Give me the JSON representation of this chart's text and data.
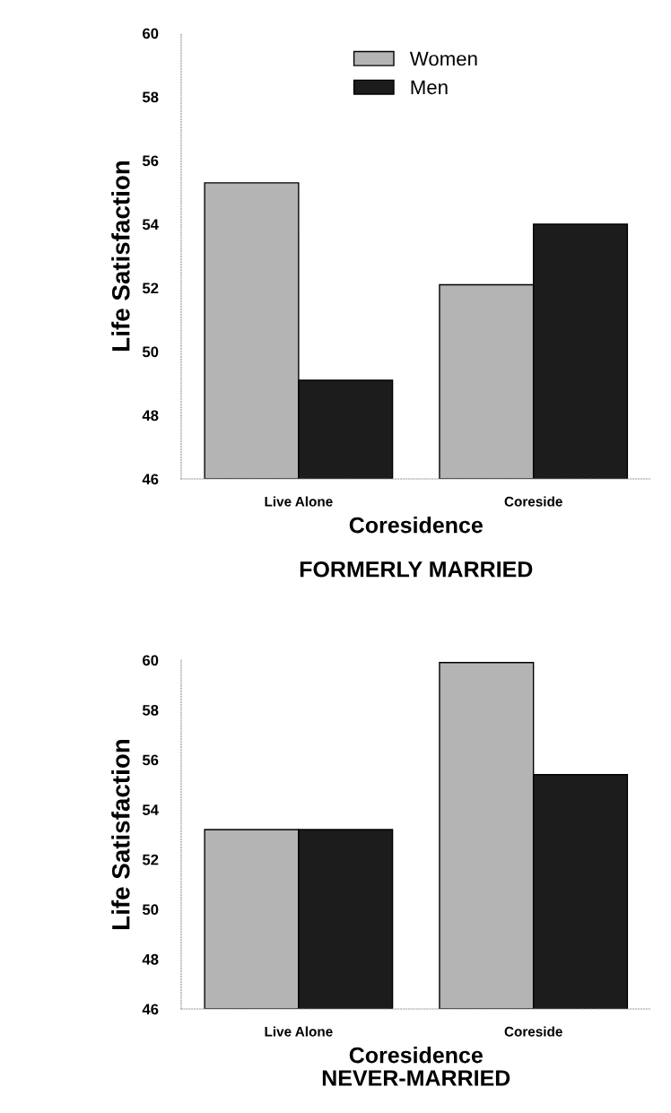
{
  "chart_data": [
    {
      "type": "bar",
      "title": "FORMERLY MARRIED",
      "xlabel": "Coresidence",
      "ylabel": "Life Satisfaction",
      "categories": [
        "Live Alone",
        "Coreside"
      ],
      "series": [
        {
          "name": "Women",
          "color": "#b4b4b4",
          "values": [
            55.3,
            52.1
          ]
        },
        {
          "name": "Men",
          "color": "#1c1c1c",
          "values": [
            49.1,
            54.0
          ]
        }
      ],
      "ylim": [
        46,
        60
      ],
      "yticks": [
        46,
        48,
        50,
        52,
        54,
        56,
        58,
        60
      ],
      "legend": "top",
      "grid": false
    },
    {
      "type": "bar",
      "title": "NEVER-MARRIED",
      "xlabel": "Coresidence",
      "ylabel": "Life Satisfaction",
      "categories": [
        "Live Alone",
        "Coreside"
      ],
      "series": [
        {
          "color": "#b4b4b4",
          "values": [
            53.2,
            59.9
          ]
        },
        {
          "color": "#1c1c1c",
          "values": [
            53.2,
            55.4
          ]
        }
      ],
      "ylim": [
        46,
        60
      ],
      "yticks": [
        46,
        48,
        50,
        52,
        54,
        56,
        58,
        60
      ],
      "grid": false
    }
  ]
}
